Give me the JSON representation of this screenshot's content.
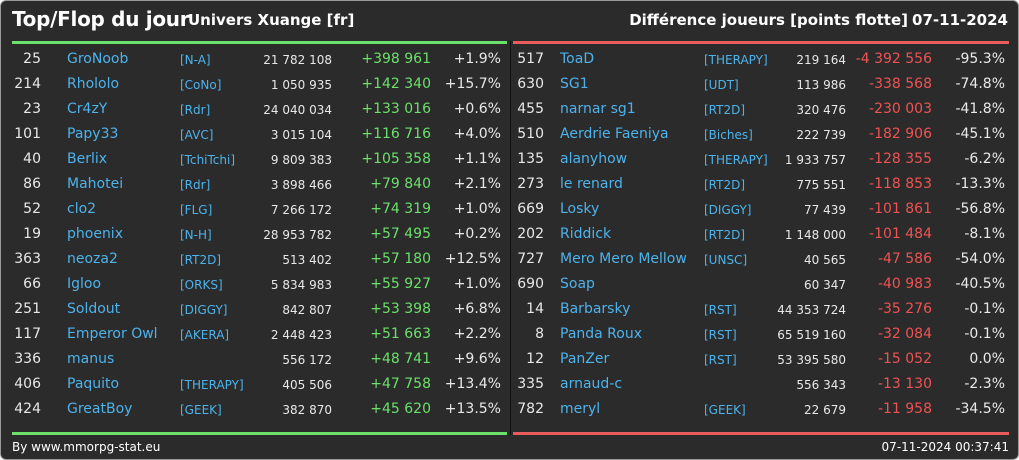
{
  "header": {
    "title": "Top/Flop du jour",
    "server": "Univers Xuange [fr]",
    "metric": "Différence joueurs [points flotte]",
    "date": "07-11-2024"
  },
  "colors": {
    "gain": "#6be06b",
    "loss": "#ef5353",
    "name": "#4db3ec",
    "background": "#2b2b2b"
  },
  "gainers": [
    {
      "rank": "25",
      "name": "GroNoob",
      "alliance": "[N-A]",
      "points": "21 782 108",
      "diff": "+398 961",
      "pct": "+1.9%"
    },
    {
      "rank": "214",
      "name": "Rhololo",
      "alliance": "[CoNo]",
      "points": "1 050 935",
      "diff": "+142 340",
      "pct": "+15.7%"
    },
    {
      "rank": "23",
      "name": "Cr4zY",
      "alliance": "[Rdr]",
      "points": "24 040 034",
      "diff": "+133 016",
      "pct": "+0.6%"
    },
    {
      "rank": "101",
      "name": "Papy33",
      "alliance": "[AVC]",
      "points": "3 015 104",
      "diff": "+116 716",
      "pct": "+4.0%"
    },
    {
      "rank": "40",
      "name": "Berlix",
      "alliance": "[TchiTchi]",
      "points": "9 809 383",
      "diff": "+105 358",
      "pct": "+1.1%"
    },
    {
      "rank": "86",
      "name": "Mahotei",
      "alliance": "[Rdr]",
      "points": "3 898 466",
      "diff": "+79 840",
      "pct": "+2.1%"
    },
    {
      "rank": "52",
      "name": "clo2",
      "alliance": "[FLG]",
      "points": "7 266 172",
      "diff": "+74 319",
      "pct": "+1.0%"
    },
    {
      "rank": "19",
      "name": "phoenix",
      "alliance": "[N-H]",
      "points": "28 953 782",
      "diff": "+57 495",
      "pct": "+0.2%"
    },
    {
      "rank": "363",
      "name": "neoza2",
      "alliance": "[RT2D]",
      "points": "513 402",
      "diff": "+57 180",
      "pct": "+12.5%"
    },
    {
      "rank": "66",
      "name": "Igloo",
      "alliance": "[ORKS]",
      "points": "5 834 983",
      "diff": "+55 927",
      "pct": "+1.0%"
    },
    {
      "rank": "251",
      "name": "Soldout",
      "alliance": "[DIGGY]",
      "points": "842 807",
      "diff": "+53 398",
      "pct": "+6.8%"
    },
    {
      "rank": "117",
      "name": "Emperor Owl",
      "alliance": "[AKERA]",
      "points": "2 448 423",
      "diff": "+51 663",
      "pct": "+2.2%"
    },
    {
      "rank": "336",
      "name": "manus",
      "alliance": "",
      "points": "556 172",
      "diff": "+48 741",
      "pct": "+9.6%"
    },
    {
      "rank": "406",
      "name": "Paquito",
      "alliance": "[THERAPY]",
      "points": "405 506",
      "diff": "+47 758",
      "pct": "+13.4%"
    },
    {
      "rank": "424",
      "name": "GreatBoy",
      "alliance": "[GEEK]",
      "points": "382 870",
      "diff": "+45 620",
      "pct": "+13.5%"
    }
  ],
  "losers": [
    {
      "rank": "517",
      "name": "ToaD",
      "alliance": "[THERAPY]",
      "points": "219 164",
      "diff": "-4 392 556",
      "pct": "-95.3%"
    },
    {
      "rank": "630",
      "name": "SG1",
      "alliance": "[UDT]",
      "points": "113 986",
      "diff": "-338 568",
      "pct": "-74.8%"
    },
    {
      "rank": "455",
      "name": "narnar sg1",
      "alliance": "[RT2D]",
      "points": "320 476",
      "diff": "-230 003",
      "pct": "-41.8%"
    },
    {
      "rank": "510",
      "name": "Aerdrie Faeniya",
      "alliance": "[Biches]",
      "points": "222 739",
      "diff": "-182 906",
      "pct": "-45.1%"
    },
    {
      "rank": "135",
      "name": "alanyhow",
      "alliance": "[THERAPY]",
      "points": "1 933 757",
      "diff": "-128 355",
      "pct": "-6.2%"
    },
    {
      "rank": "273",
      "name": "le renard",
      "alliance": "[RT2D]",
      "points": "775 551",
      "diff": "-118 853",
      "pct": "-13.3%"
    },
    {
      "rank": "669",
      "name": "Losky",
      "alliance": "[DIGGY]",
      "points": "77 439",
      "diff": "-101 861",
      "pct": "-56.8%"
    },
    {
      "rank": "202",
      "name": "Riddick",
      "alliance": "[RT2D]",
      "points": "1 148 000",
      "diff": "-101 484",
      "pct": "-8.1%"
    },
    {
      "rank": "727",
      "name": "Mero Mero Mellow",
      "alliance": "[UNSC]",
      "points": "40 565",
      "diff": "-47 586",
      "pct": "-54.0%"
    },
    {
      "rank": "690",
      "name": "Soap",
      "alliance": "",
      "points": "60 347",
      "diff": "-40 983",
      "pct": "-40.5%"
    },
    {
      "rank": "14",
      "name": "Barbarsky",
      "alliance": "[RST]",
      "points": "44 353 724",
      "diff": "-35 276",
      "pct": "-0.1%"
    },
    {
      "rank": "8",
      "name": "Panda Roux",
      "alliance": "[RST]",
      "points": "65 519 160",
      "diff": "-32 084",
      "pct": "-0.1%"
    },
    {
      "rank": "12",
      "name": "PanZer",
      "alliance": "[RST]",
      "points": "53 395 580",
      "diff": "-15 052",
      "pct": "0.0%"
    },
    {
      "rank": "335",
      "name": "arnaud-c",
      "alliance": "",
      "points": "556 343",
      "diff": "-13 130",
      "pct": "-2.3%"
    },
    {
      "rank": "782",
      "name": "meryl",
      "alliance": "[GEEK]",
      "points": "22 679",
      "diff": "-11 958",
      "pct": "-34.5%"
    }
  ],
  "footer": {
    "credit": "By www.mmorpg-stat.eu",
    "timestamp": "07-11-2024 00:37:41"
  }
}
